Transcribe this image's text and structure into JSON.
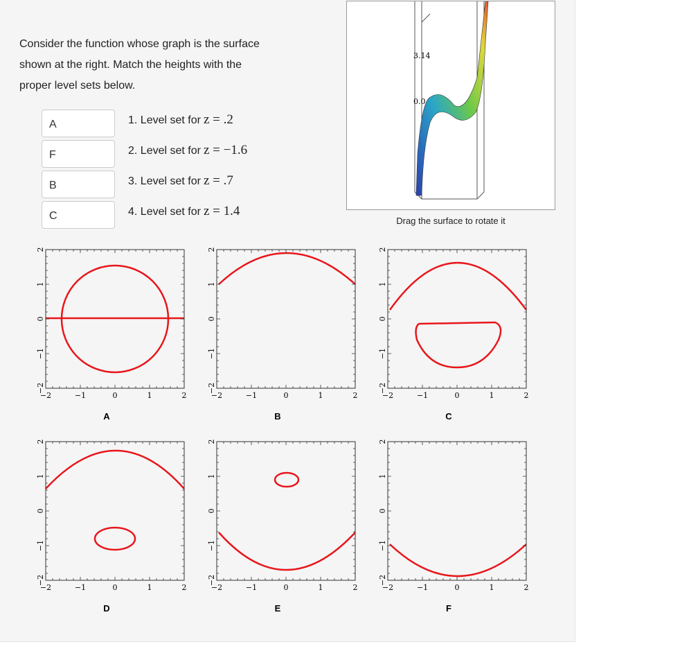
{
  "question": {
    "lines": [
      "Consider the function whose graph is the surface",
      "shown at the right. Match the heights with the",
      "proper level sets below."
    ]
  },
  "items": [
    {
      "answer": "A",
      "text": "1. Level set for",
      "math": "z = .2"
    },
    {
      "answer": "F",
      "text": "2. Level set for",
      "math": "z = −1.6"
    },
    {
      "answer": "B",
      "text": "3. Level set for",
      "math": "z = .7"
    },
    {
      "answer": "C",
      "text": "4. Level set for",
      "math": "z = 1.4"
    }
  ],
  "surface": {
    "caption": "Drag the surface to rotate it",
    "labels": [
      "3.14",
      "0.0"
    ]
  },
  "plots": {
    "ticks": [
      "−2",
      "−1",
      "0",
      "1",
      "2"
    ],
    "captions": [
      "A",
      "B",
      "C",
      "D",
      "E",
      "F"
    ]
  }
}
